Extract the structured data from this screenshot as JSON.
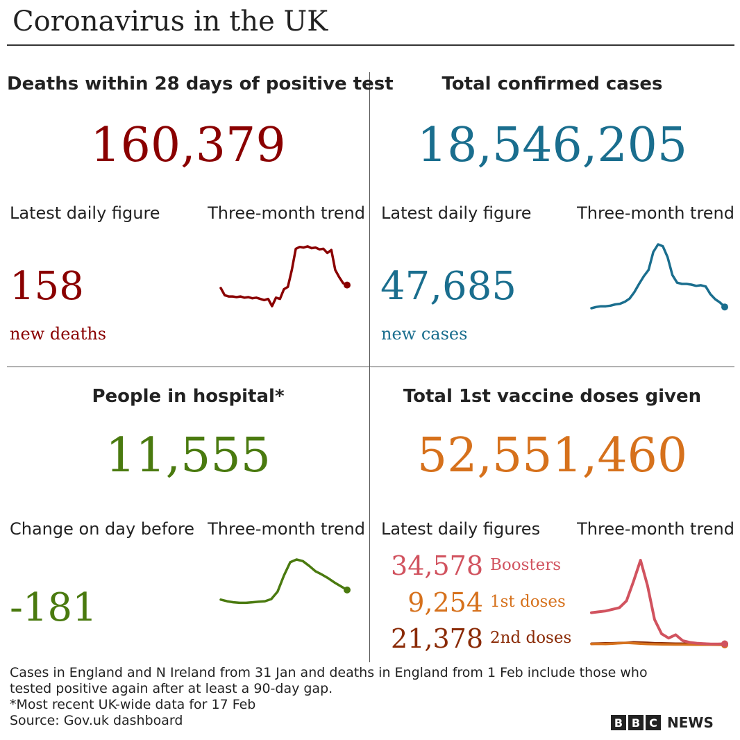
{
  "title": "Coronavirus in the UK",
  "colors": {
    "deaths": "#8a0000",
    "cases": "#1a6e8e",
    "hospital": "#4a7a0f",
    "boosters": "#d1535f",
    "first": "#d6711c",
    "second": "#8a2a05"
  },
  "panels": {
    "deaths": {
      "title": "Deaths within 28 days of positive test",
      "total": "160,379",
      "daily_label": "Latest daily figure",
      "trend_label": "Three-month trend",
      "daily_value": "158",
      "daily_text": "new deaths"
    },
    "cases": {
      "title": "Total confirmed cases",
      "total": "18,546,205",
      "daily_label": "Latest daily figure",
      "trend_label": "Three-month trend",
      "daily_value": "47,685",
      "daily_text": "new cases"
    },
    "hospital": {
      "title": "People in hospital*",
      "total": "11,555",
      "daily_label": "Change on day before",
      "trend_label": "Three-month trend",
      "daily_value": "-181"
    },
    "vaccine": {
      "title": "Total 1st vaccine doses given",
      "total": "52,551,460",
      "daily_label": "Latest daily figures",
      "trend_label": "Three-month trend",
      "boosters_value": "34,578",
      "boosters_label": "Boosters",
      "first_value": "9,254",
      "first_label": "1st doses",
      "second_value": "21,378",
      "second_label": "2nd doses"
    }
  },
  "footnotes": [
    "Cases in England and N Ireland from 31 Jan and deaths in England from 1 Feb include those who",
    "tested positive again after at least a 90-day gap.",
    "*Most recent UK-wide data for 17 Feb",
    "Source: Gov.uk dashboard"
  ],
  "brand": {
    "letters": [
      "B",
      "B",
      "C"
    ],
    "news": "NEWS"
  },
  "chart_data": [
    {
      "type": "line",
      "name": "deaths-trend",
      "series": [
        {
          "values": [
            0.3,
            0.18,
            0.16,
            0.16,
            0.15,
            0.16,
            0.14,
            0.15,
            0.13,
            0.14,
            0.12,
            0.1,
            0.12,
            0.0,
            0.14,
            0.12,
            0.28,
            0.32,
            0.6,
            0.95,
            0.98,
            0.97,
            0.99,
            0.96,
            0.97,
            0.94,
            0.95,
            0.88,
            0.93,
            0.6,
            0.48,
            0.38,
            0.35
          ]
        }
      ]
    },
    {
      "type": "line",
      "name": "cases-trend",
      "series": [
        {
          "values": [
            0.0,
            0.02,
            0.03,
            0.03,
            0.04,
            0.06,
            0.07,
            0.1,
            0.15,
            0.25,
            0.38,
            0.5,
            0.6,
            0.88,
            1.0,
            0.97,
            0.8,
            0.52,
            0.4,
            0.38,
            0.38,
            0.37,
            0.35,
            0.36,
            0.34,
            0.22,
            0.14,
            0.09,
            0.02
          ]
        }
      ]
    },
    {
      "type": "line",
      "name": "hospital-trend",
      "series": [
        {
          "values": [
            0.25,
            0.22,
            0.2,
            0.19,
            0.19,
            0.2,
            0.21,
            0.22,
            0.26,
            0.4,
            0.7,
            0.95,
            1.0,
            0.97,
            0.88,
            0.78,
            0.72,
            0.65,
            0.57,
            0.5,
            0.43
          ]
        }
      ]
    },
    {
      "type": "line",
      "name": "vaccine-trend",
      "series": [
        {
          "name": "Boosters",
          "values": [
            0.38,
            0.39,
            0.4,
            0.42,
            0.44,
            0.52,
            0.75,
            1.0,
            0.7,
            0.3,
            0.13,
            0.08,
            0.12,
            0.05,
            0.03,
            0.02,
            0.015,
            0.01,
            0.01,
            0.012
          ]
        },
        {
          "name": "1st doses",
          "values": [
            0.01,
            0.012,
            0.01,
            0.015,
            0.02,
            0.025,
            0.02,
            0.015,
            0.01,
            0.008,
            0.006,
            0.005,
            0.004,
            0.004,
            0.003,
            0.002,
            0.002,
            0.002,
            0.001,
            0.0
          ]
        },
        {
          "name": "2nd doses",
          "values": [
            0.015,
            0.016,
            0.018,
            0.02,
            0.022,
            0.025,
            0.03,
            0.028,
            0.025,
            0.02,
            0.018,
            0.016,
            0.015,
            0.014,
            0.013,
            0.012,
            0.012,
            0.011,
            0.011,
            0.01
          ]
        }
      ]
    }
  ]
}
